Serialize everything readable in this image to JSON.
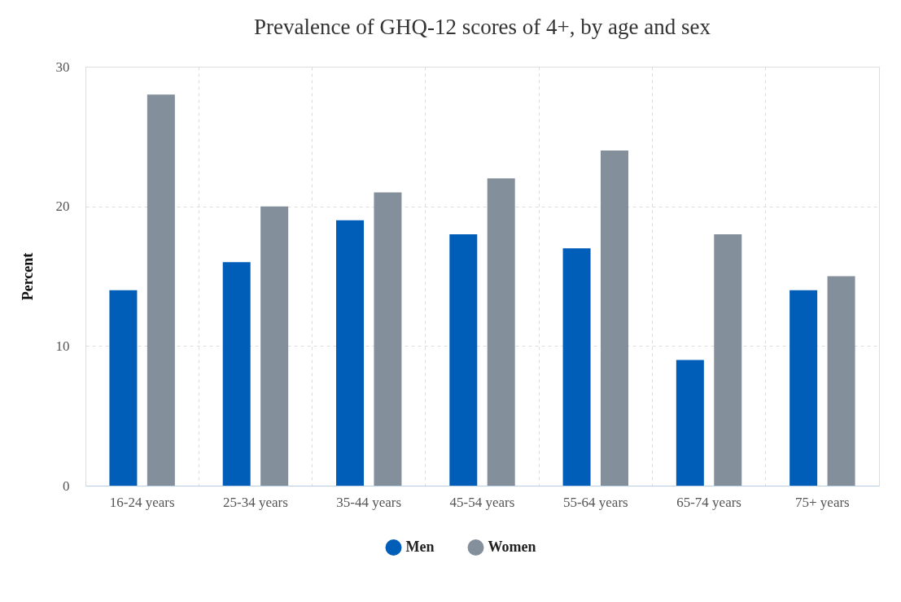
{
  "chart_data": {
    "type": "bar",
    "title": "Prevalence of GHQ-12 scores of 4+, by age and sex",
    "ylabel": "Percent",
    "categories": [
      "16-24 years",
      "25-34 years",
      "35-44 years",
      "45-54 years",
      "55-64 years",
      "65-74 years",
      "75+ years"
    ],
    "series": [
      {
        "name": "Men",
        "color": "#005eb8",
        "values": [
          14,
          16,
          19,
          18,
          17,
          9,
          14
        ]
      },
      {
        "name": "Women",
        "color": "#838f9b",
        "values": [
          28,
          20,
          21,
          22,
          24,
          18,
          15
        ]
      }
    ],
    "ylim": [
      0,
      30
    ],
    "yticks": [
      0,
      10,
      20,
      30
    ],
    "grid": true,
    "legend": "bottom"
  }
}
